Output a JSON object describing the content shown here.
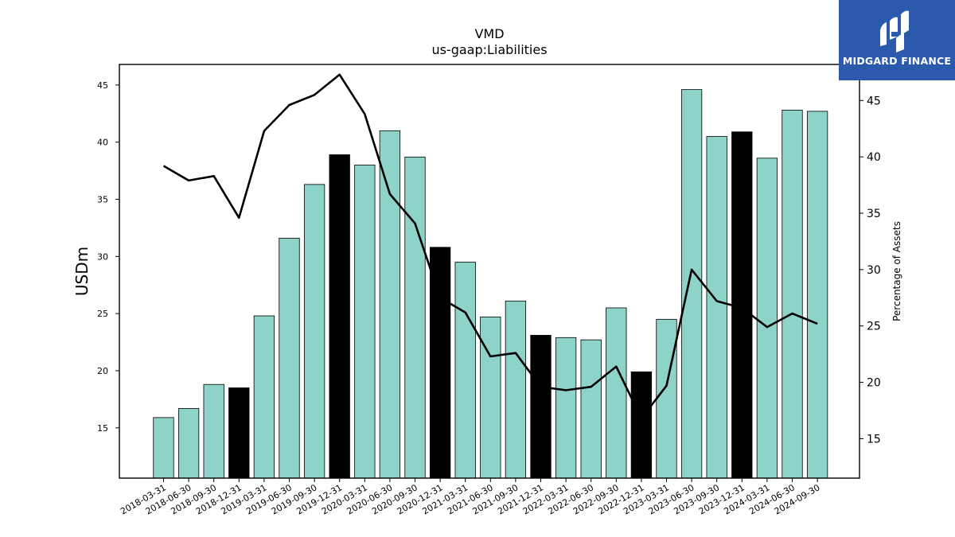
{
  "header": {
    "title": "VMD",
    "subtitle": "us-gaap:Liabilities"
  },
  "logo": {
    "text": "MIDGARD FINANCE",
    "background": "#2b5aad"
  },
  "chart_data": {
    "type": "bar",
    "title": "VMD",
    "subtitle": "us-gaap:Liabilities",
    "ylabel": "USDm",
    "y2label": "Percentage of Assets",
    "ylim": [
      10.6,
      46.8
    ],
    "y2lim": [
      11.5,
      48.2
    ],
    "yticks": [
      15,
      20,
      25,
      30,
      35,
      40,
      45
    ],
    "y2ticks": [
      15,
      20,
      25,
      30,
      35,
      40,
      45
    ],
    "categories": [
      "2018-03-31",
      "2018-06-30",
      "2018-09-30",
      "2018-12-31",
      "2019-03-31",
      "2019-06-30",
      "2019-09-30",
      "2019-12-31",
      "2020-03-31",
      "2020-06-30",
      "2020-09-30",
      "2020-12-31",
      "2021-03-31",
      "2021-06-30",
      "2021-09-30",
      "2021-12-31",
      "2022-03-31",
      "2022-06-30",
      "2022-09-30",
      "2022-12-31",
      "2023-03-31",
      "2023-06-30",
      "2023-09-30",
      "2023-12-31",
      "2024-03-31",
      "2024-06-30",
      "2024-09-30"
    ],
    "series": [
      {
        "type": "bar",
        "axis": "left",
        "values": [
          15.9,
          16.7,
          18.8,
          18.5,
          24.8,
          31.6,
          36.3,
          38.9,
          38.0,
          41.0,
          38.7,
          30.8,
          29.5,
          24.7,
          26.1,
          23.1,
          22.9,
          22.7,
          25.5,
          19.9,
          24.5,
          44.6,
          40.5,
          40.9,
          38.6,
          42.8,
          42.7
        ],
        "year_end_color": "#000000",
        "color": "#8dd3c7"
      },
      {
        "type": "line",
        "axis": "right",
        "color": "#000000",
        "values": [
          39.2,
          37.9,
          38.3,
          34.6,
          42.3,
          44.6,
          45.5,
          47.3,
          43.8,
          36.7,
          34.1,
          27.5,
          26.2,
          22.3,
          22.6,
          19.6,
          19.3,
          19.6,
          21.4,
          16.8,
          19.7,
          30.0,
          27.2,
          26.6,
          24.9,
          26.1,
          25.2
        ]
      }
    ]
  }
}
